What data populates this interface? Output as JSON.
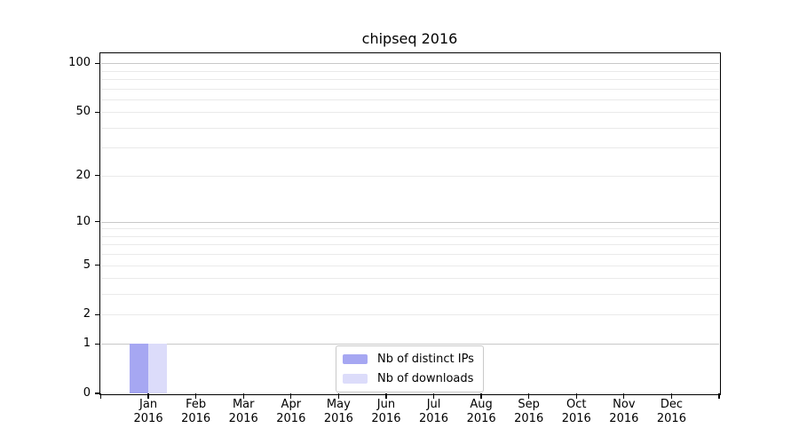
{
  "title": "chipseq 2016",
  "chart_data": {
    "type": "bar",
    "title": "chipseq 2016",
    "scale": "log1p",
    "categories": [
      {
        "month": "Jan",
        "year": "2016"
      },
      {
        "month": "Feb",
        "year": "2016"
      },
      {
        "month": "Mar",
        "year": "2016"
      },
      {
        "month": "Apr",
        "year": "2016"
      },
      {
        "month": "May",
        "year": "2016"
      },
      {
        "month": "Jun",
        "year": "2016"
      },
      {
        "month": "Jul",
        "year": "2016"
      },
      {
        "month": "Aug",
        "year": "2016"
      },
      {
        "month": "Sep",
        "year": "2016"
      },
      {
        "month": "Oct",
        "year": "2016"
      },
      {
        "month": "Nov",
        "year": "2016"
      },
      {
        "month": "Dec",
        "year": "2016"
      }
    ],
    "series": [
      {
        "name": "Nb of distinct IPs",
        "color": "#a6a7f2",
        "values": [
          1,
          0,
          0,
          0,
          0,
          0,
          0,
          0,
          0,
          0,
          0,
          0
        ]
      },
      {
        "name": "Nb of downloads",
        "color": "#dcdcfa",
        "values": [
          1,
          0,
          0,
          0,
          0,
          0,
          0,
          0,
          0,
          0,
          0,
          0
        ]
      }
    ],
    "y_ticks": [
      0,
      1,
      2,
      5,
      10,
      20,
      50,
      100
    ],
    "y_gridlines_major": [
      1,
      10,
      100
    ],
    "y_gridlines_minor": [
      2,
      3,
      4,
      5,
      6,
      7,
      8,
      9,
      20,
      30,
      40,
      50,
      60,
      70,
      80,
      90
    ],
    "ylim": [
      0,
      115
    ],
    "xlabel": "",
    "ylabel": "",
    "grid": true,
    "legend_position": "lower center",
    "colors": {
      "gridline_major": "#c8c8c8",
      "gridline_minor": "#eaeaea",
      "axis": "#000000",
      "background": "#ffffff"
    }
  }
}
